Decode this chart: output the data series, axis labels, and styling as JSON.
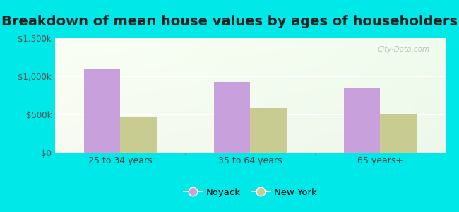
{
  "title": "Breakdown of mean house values by ages of householders",
  "categories": [
    "25 to 34 years",
    "35 to 64 years",
    "65 years+"
  ],
  "noyack_values": [
    1090000,
    930000,
    840000
  ],
  "newyork_values": [
    475000,
    580000,
    510000
  ],
  "noyack_color": "#c8a0dc",
  "newyork_color": "#c8cc90",
  "bar_width": 0.28,
  "ylim": [
    0,
    1500000
  ],
  "yticks": [
    0,
    500000,
    1000000,
    1500000
  ],
  "ytick_labels": [
    "$0",
    "$500k",
    "$1,000k",
    "$1,500k"
  ],
  "background_outer": "#00e8e8",
  "legend_noyack": "Noyack",
  "legend_newyork": "New York",
  "title_fontsize": 14,
  "watermark": "City-Data.com"
}
